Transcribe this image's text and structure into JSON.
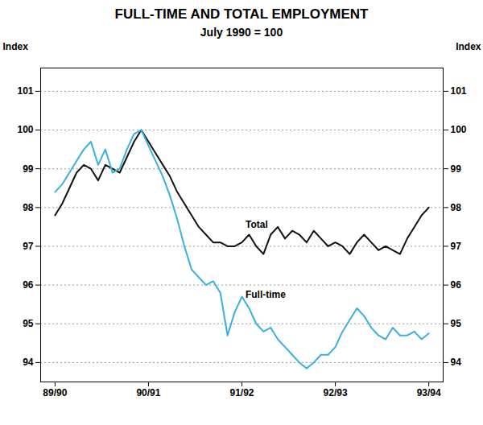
{
  "chart_data": {
    "type": "line",
    "title": "FULL-TIME AND TOTAL EMPLOYMENT",
    "subtitle": "July 1990 = 100",
    "ylabel": "Index",
    "y2label": "Index",
    "x": [
      0,
      1,
      2,
      3,
      4,
      5,
      6,
      7,
      8,
      9,
      10,
      11,
      12,
      13,
      14,
      15,
      16,
      17,
      18,
      19,
      20,
      21,
      22,
      23,
      24,
      25,
      26,
      27,
      28,
      29,
      30,
      31,
      32,
      33,
      34,
      35,
      36,
      37,
      38,
      39,
      40,
      41,
      42,
      43,
      44,
      45,
      46,
      47,
      48,
      49,
      50,
      51,
      52
    ],
    "series": [
      {
        "name": "Total",
        "color": "#111111",
        "values": [
          97.8,
          98.1,
          98.5,
          98.9,
          99.1,
          99.0,
          98.7,
          99.1,
          99.0,
          98.9,
          99.3,
          99.7,
          100.0,
          99.7,
          99.4,
          99.1,
          98.8,
          98.4,
          98.1,
          97.8,
          97.5,
          97.3,
          97.1,
          97.1,
          97.0,
          97.0,
          97.1,
          97.3,
          97.0,
          96.8,
          97.3,
          97.5,
          97.2,
          97.4,
          97.3,
          97.1,
          97.4,
          97.2,
          97.0,
          97.1,
          97.0,
          96.8,
          97.1,
          97.3,
          97.1,
          96.9,
          97.0,
          96.9,
          96.8,
          97.2,
          97.5,
          97.8,
          98.0
        ]
      },
      {
        "name": "Full-time",
        "color": "#3aafe0",
        "values": [
          98.4,
          98.6,
          98.9,
          99.2,
          99.5,
          99.7,
          99.1,
          99.5,
          98.9,
          99.0,
          99.5,
          99.9,
          100.0,
          99.6,
          99.2,
          98.8,
          98.3,
          97.7,
          97.0,
          96.4,
          96.2,
          96.0,
          96.1,
          95.8,
          94.7,
          95.3,
          95.7,
          95.4,
          95.0,
          94.8,
          94.9,
          94.6,
          94.4,
          94.2,
          94.0,
          93.85,
          94.0,
          94.2,
          94.2,
          94.4,
          94.8,
          95.1,
          95.4,
          95.2,
          94.9,
          94.7,
          94.6,
          94.9,
          94.7,
          94.7,
          94.8,
          94.6,
          94.75
        ]
      }
    ],
    "annotations": [
      {
        "text": "Total",
        "x": 26.5,
        "y": 97.55
      },
      {
        "text": "Full-time",
        "x": 26.5,
        "y": 95.75
      }
    ],
    "xlim": [
      -2,
      54
    ],
    "xticks": [
      {
        "value": 0,
        "label": "89/90"
      },
      {
        "value": 13,
        "label": "90/91"
      },
      {
        "value": 26,
        "label": "91/92"
      },
      {
        "value": 39,
        "label": "92/93"
      },
      {
        "value": 52,
        "label": "93/94"
      }
    ],
    "ylim": [
      93.5,
      101.6
    ],
    "yticks": [
      94,
      95,
      96,
      97,
      98,
      99,
      100,
      101
    ],
    "y2lim": [
      93.5,
      101.6
    ],
    "y2ticks": [
      94,
      95,
      96,
      97,
      98,
      99,
      100,
      101
    ],
    "grid": true
  }
}
